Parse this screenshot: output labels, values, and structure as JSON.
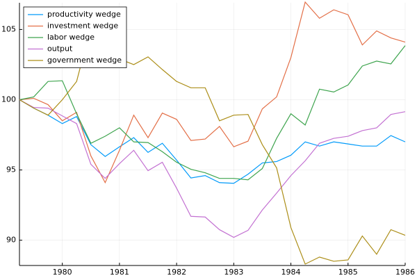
{
  "chart_data": {
    "type": "line",
    "x": [
      1979.25,
      1979.5,
      1979.75,
      1980.0,
      1980.25,
      1980.5,
      1980.75,
      1981.0,
      1981.25,
      1981.5,
      1981.75,
      1982.0,
      1982.25,
      1982.5,
      1982.75,
      1983.0,
      1983.25,
      1983.5,
      1983.75,
      1984.0,
      1984.25,
      1984.5,
      1984.75,
      1985.0,
      1985.25,
      1985.5,
      1985.75,
      1986.0
    ],
    "series": [
      {
        "name": "productivity wedge",
        "color": "#009afa",
        "values": [
          100,
          99.4,
          98.9,
          98.3,
          98.8,
          96.8,
          95.96,
          96.65,
          97.3,
          96.25,
          96.9,
          95.7,
          94.43,
          94.6,
          94.1,
          94.05,
          94.7,
          95.5,
          95.6,
          96.05,
          97.0,
          96.7,
          97.0,
          96.85,
          96.7,
          96.7,
          97.45,
          97.0
        ]
      },
      {
        "name": "investment wedge",
        "color": "#e36f47",
        "values": [
          100,
          100.1,
          99.65,
          98.5,
          99.1,
          96.0,
          94.1,
          96.4,
          98.9,
          97.3,
          99.05,
          98.6,
          97.1,
          97.2,
          98.1,
          96.65,
          97.05,
          99.35,
          100.2,
          103.0,
          106.95,
          105.8,
          106.4,
          106.05,
          103.9,
          104.9,
          104.4,
          104.1
        ]
      },
      {
        "name": "labor wedge",
        "color": "#3ea44e",
        "values": [
          100,
          100.2,
          101.3,
          101.35,
          99.0,
          96.9,
          97.4,
          98.0,
          97.0,
          96.95,
          96.3,
          95.55,
          95.05,
          94.8,
          94.4,
          94.4,
          94.3,
          95.1,
          97.25,
          99.0,
          98.2,
          100.75,
          100.55,
          101.05,
          102.4,
          102.75,
          102.55,
          103.85
        ]
      },
      {
        "name": "output",
        "color": "#c371d2",
        "values": [
          100,
          99.45,
          99.4,
          98.85,
          98.3,
          95.4,
          94.4,
          95.45,
          96.4,
          94.95,
          95.55,
          93.7,
          91.7,
          91.65,
          90.75,
          90.2,
          90.7,
          92.15,
          93.35,
          94.6,
          95.65,
          96.9,
          97.25,
          97.4,
          97.8,
          98.0,
          98.95,
          99.15
        ]
      },
      {
        "name": "government wedge",
        "color": "#ac8e18",
        "values": [
          100,
          99.4,
          98.9,
          100,
          101.3,
          105.2,
          105.75,
          102.9,
          102.5,
          103.05,
          102.15,
          101.3,
          100.85,
          100.85,
          98.5,
          98.9,
          98.95,
          96.8,
          95.15,
          90.9,
          88.3,
          88.8,
          88.5,
          88.6,
          90.3,
          89.0,
          90.75,
          90.35
        ]
      }
    ],
    "xlim": [
      1979.25,
      1986.0
    ],
    "xticks": [
      1980,
      1981,
      1982,
      1983,
      1984,
      1985,
      1986
    ],
    "ylim": [
      88.2,
      106.9
    ],
    "yticks": [
      90,
      95,
      100,
      105
    ],
    "grid": true,
    "legend": "top-left"
  }
}
